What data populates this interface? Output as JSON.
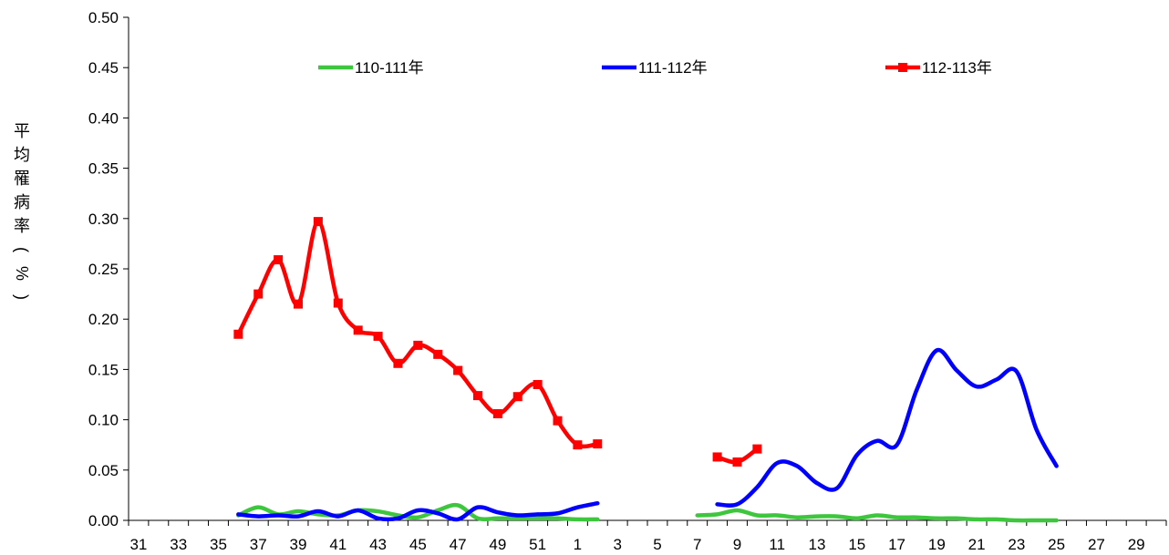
{
  "chart_data": {
    "type": "line",
    "title": "",
    "xlabel": "",
    "ylabel": "平均罹病率(%)",
    "ylim": [
      0,
      0.5
    ],
    "yticks": [
      "0.00",
      "0.05",
      "0.10",
      "0.15",
      "0.20",
      "0.25",
      "0.30",
      "0.35",
      "0.40",
      "0.45",
      "0.50"
    ],
    "categories": [
      "31",
      "32",
      "33",
      "34",
      "35",
      "36",
      "37",
      "38",
      "39",
      "40",
      "41",
      "42",
      "43",
      "44",
      "45",
      "46",
      "47",
      "48",
      "49",
      "50",
      "51",
      "52",
      "1",
      "2",
      "3",
      "4",
      "5",
      "6",
      "7",
      "8",
      "9",
      "10",
      "11",
      "12",
      "13",
      "14",
      "15",
      "16",
      "17",
      "18",
      "19",
      "20",
      "21",
      "22",
      "23",
      "24",
      "25",
      "26",
      "27",
      "28",
      "29",
      "30"
    ],
    "xtick_labels": [
      "31",
      "33",
      "35",
      "37",
      "39",
      "41",
      "43",
      "45",
      "47",
      "49",
      "51",
      "1",
      "3",
      "5",
      "7",
      "9",
      "11",
      "13",
      "15",
      "17",
      "19",
      "21",
      "23",
      "25",
      "27",
      "29"
    ],
    "grid": false,
    "legend_position": "top",
    "series": [
      {
        "name": "110-111年",
        "color": "#3fc63f",
        "marker": "none",
        "values": [
          null,
          null,
          null,
          null,
          null,
          0.005,
          0.013,
          0.006,
          0.009,
          0.006,
          0.005,
          0.01,
          0.009,
          0.005,
          0.003,
          0.01,
          0.015,
          0.002,
          0.002,
          0.002,
          0.002,
          0.002,
          0.001,
          0.001,
          null,
          null,
          null,
          null,
          0.005,
          0.006,
          0.01,
          0.005,
          0.005,
          0.003,
          0.004,
          0.004,
          0.002,
          0.005,
          0.003,
          0.003,
          0.002,
          0.002,
          0.001,
          0.001,
          0.0,
          0.0,
          0.0,
          null,
          null,
          null,
          null,
          null
        ]
      },
      {
        "name": "111-112年",
        "color": "#0000ff",
        "marker": "none",
        "values": [
          null,
          null,
          null,
          null,
          null,
          0.006,
          0.004,
          0.005,
          0.004,
          0.009,
          0.004,
          0.01,
          0.002,
          0.002,
          0.01,
          0.007,
          0.001,
          0.013,
          0.008,
          0.005,
          0.006,
          0.007,
          0.013,
          0.017,
          null,
          null,
          null,
          null,
          null,
          0.016,
          0.016,
          0.033,
          0.057,
          0.054,
          0.037,
          0.032,
          0.065,
          0.079,
          0.075,
          0.13,
          0.169,
          0.149,
          0.133,
          0.14,
          0.148,
          0.09,
          0.054,
          null,
          null,
          null,
          null,
          null
        ]
      },
      {
        "name": "112-113年",
        "color": "#ff0000",
        "marker": "square",
        "values": [
          null,
          null,
          null,
          null,
          null,
          0.185,
          0.225,
          0.259,
          0.215,
          0.297,
          0.216,
          0.189,
          0.183,
          0.156,
          0.174,
          0.165,
          0.149,
          0.124,
          0.106,
          0.123,
          0.135,
          0.099,
          0.075,
          0.076,
          null,
          null,
          null,
          null,
          null,
          0.063,
          0.058,
          0.071,
          null,
          null,
          null,
          null,
          null,
          null,
          null,
          null,
          null,
          null,
          null,
          null,
          null,
          null,
          null,
          null,
          null,
          null,
          null,
          null
        ]
      }
    ]
  }
}
